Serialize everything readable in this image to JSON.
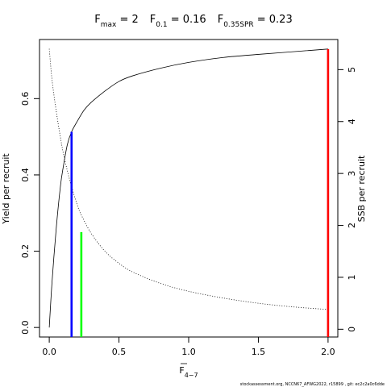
{
  "chart_data": {
    "type": "line",
    "title_parts": [
      {
        "main": "F",
        "sub": "max",
        "rest": " = 2"
      },
      {
        "main": "F",
        "sub": "0.1",
        "rest": " = 0.16"
      },
      {
        "main": "F",
        "sub": "0.35SPR",
        "rest": " = 0.23"
      }
    ],
    "xlabel": {
      "main": "F",
      "sub": "4−7",
      "overline": true
    },
    "ylabel_left": "Yield per recruit",
    "ylabel_right": "SSB per recruit",
    "xlim": [
      -0.07,
      2.07
    ],
    "ylim_left": [
      -0.025,
      0.755
    ],
    "ylim_right": [
      -0.15,
      5.58
    ],
    "x_ticks": [
      0,
      0.5,
      1.0,
      1.5,
      2.0
    ],
    "x_tick_labels": [
      "0.0",
      "0.5",
      "1.0",
      "1.5",
      "2.0"
    ],
    "y_left_ticks": [
      0,
      0.2,
      0.4,
      0.6
    ],
    "y_left_tick_labels": [
      "0.0",
      "0.2",
      "0.4",
      "0.6"
    ],
    "y_right_ticks": [
      0,
      1,
      2,
      3,
      4,
      5
    ],
    "y_right_tick_labels": [
      "0",
      "1",
      "2",
      "3",
      "4",
      "5"
    ],
    "series": [
      {
        "axis": "left",
        "style": "solid",
        "x": [
          0,
          0.02,
          0.05,
          0.08,
          0.1,
          0.13,
          0.16,
          0.2,
          0.25,
          0.3,
          0.4,
          0.5,
          0.6,
          0.8,
          1.0,
          1.25,
          1.5,
          1.75,
          2.0
        ],
        "y": [
          0.0,
          0.12,
          0.26,
          0.37,
          0.42,
          0.48,
          0.513,
          0.54,
          0.57,
          0.59,
          0.62,
          0.645,
          0.66,
          0.68,
          0.695,
          0.708,
          0.716,
          0.723,
          0.73
        ]
      },
      {
        "axis": "right",
        "style": "dotted",
        "x": [
          0,
          0.02,
          0.05,
          0.08,
          0.1,
          0.13,
          0.16,
          0.2,
          0.23,
          0.3,
          0.4,
          0.5,
          0.6,
          0.8,
          1.0,
          1.25,
          1.5,
          1.75,
          2.0
        ],
        "y": [
          5.4,
          4.8,
          4.2,
          3.7,
          3.4,
          3.05,
          2.75,
          2.4,
          2.2,
          1.85,
          1.5,
          1.27,
          1.1,
          0.88,
          0.73,
          0.6,
          0.5,
          0.43,
          0.38
        ]
      }
    ],
    "reference_lines": [
      {
        "x": 0.16,
        "y_top": 0.513,
        "color": "#0000ff"
      },
      {
        "x": 0.23,
        "y_top": 0.25,
        "color": "#00ff00"
      },
      {
        "x": 2.0,
        "y_top": 0.73,
        "color": "#ff0000"
      }
    ],
    "footer": "stockassessment.org, NCCN67_AFWG2022, r15899 , git: ec2c2a0c6dde"
  }
}
